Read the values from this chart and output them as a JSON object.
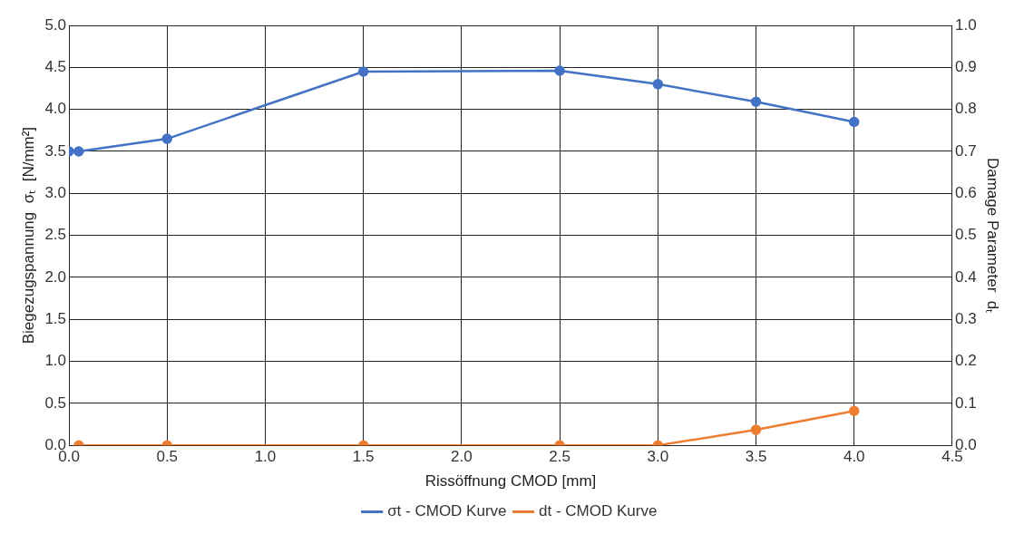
{
  "chart_data": {
    "type": "line",
    "xlabel": "Rissöffnung CMOD [mm]",
    "ylabel": "Biegezugspannung  σₜ  [N/mm²]",
    "y2label": "Damage Parameter  dₜ",
    "series": [
      {
        "name": "σt - CMOD Kurve",
        "color": "#4472c4",
        "x": [
          0,
          0.05,
          0.5,
          1.5,
          2.5,
          3.0,
          3.5,
          4.0
        ],
        "values": [
          3.5,
          3.5,
          3.65,
          4.45,
          4.46,
          4.3,
          4.09,
          3.85
        ]
      },
      {
        "name": "dt - CMOD Kurve",
        "color": "#ed7d31",
        "axis": "y2",
        "x": [
          0.05,
          0.5,
          1.5,
          2.5,
          3.0,
          3.5,
          4.0
        ],
        "values": [
          0,
          0,
          0,
          0,
          0,
          0.037,
          0.082
        ]
      }
    ],
    "xlim": [
      0,
      4.5
    ],
    "xticks": [
      {
        "value": 0,
        "label": "0.0"
      },
      {
        "value": 0.5,
        "label": "0.5"
      },
      {
        "value": 1,
        "label": "1.0"
      },
      {
        "value": 1.5,
        "label": "1.5"
      },
      {
        "value": 2,
        "label": "2.0"
      },
      {
        "value": 2.5,
        "label": "2.5"
      },
      {
        "value": 3,
        "label": "3.0"
      },
      {
        "value": 3.5,
        "label": "3.5"
      },
      {
        "value": 4,
        "label": "4.0"
      },
      {
        "value": 4.5,
        "label": "4.5"
      }
    ],
    "ylim": [
      0,
      5
    ],
    "yticks": [
      {
        "value": 0,
        "label": "0.0"
      },
      {
        "value": 0.5,
        "label": "0.5"
      },
      {
        "value": 1,
        "label": "1.0"
      },
      {
        "value": 1.5,
        "label": "1.5"
      },
      {
        "value": 2,
        "label": "2.0"
      },
      {
        "value": 2.5,
        "label": "2.5"
      },
      {
        "value": 3,
        "label": "3.0"
      },
      {
        "value": 3.5,
        "label": "3.5"
      },
      {
        "value": 4,
        "label": "4.0"
      },
      {
        "value": 4.5,
        "label": "4.5"
      },
      {
        "value": 5,
        "label": "5.0"
      }
    ],
    "y2lim": [
      0,
      1
    ],
    "y2ticks": [
      {
        "value": 0,
        "label": "0.0"
      },
      {
        "value": 0.1,
        "label": "0.1"
      },
      {
        "value": 0.2,
        "label": "0.2"
      },
      {
        "value": 0.3,
        "label": "0.3"
      },
      {
        "value": 0.4,
        "label": "0.4"
      },
      {
        "value": 0.5,
        "label": "0.5"
      },
      {
        "value": 0.6,
        "label": "0.6"
      },
      {
        "value": 0.7,
        "label": "0.7"
      },
      {
        "value": 0.8,
        "label": "0.8"
      },
      {
        "value": 0.9,
        "label": "0.9"
      },
      {
        "value": 1,
        "label": "1.0"
      }
    ],
    "grid": true,
    "legend": "bottom",
    "marker": "circle",
    "line_style": "solid"
  }
}
